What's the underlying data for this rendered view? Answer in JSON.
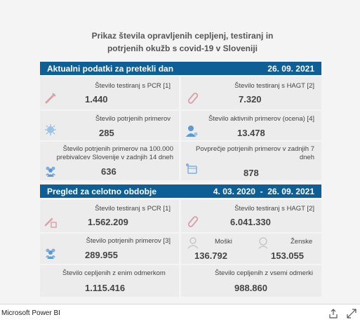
{
  "report": {
    "title_line1": "Prikaz števila opravljenih cepljenj, testiranj in",
    "title_line2": "potrjenih okužb s covid-19 v Sloveniji"
  },
  "current": {
    "header_label": "Aktualni podatki za pretekli dan",
    "header_date": "26. 09. 2021",
    "pcr_label": "Število testiranj s PCR [1]",
    "pcr_value": "1.440",
    "hagt_label": "Število testiranj s HAGT [2]",
    "hagt_value": "7.320",
    "confirmed_label": "Število potrjenih primerov",
    "confirmed_value": "285",
    "active_label": "Število aktivnih primerov (ocena) [4]",
    "active_value": "13.478",
    "per100k_label_line1": "Število potrjenih primerov na 100.000",
    "per100k_label_line2": "prebivalcev Slovenije v zadnjih 14 dneh",
    "per100k_value": "636",
    "avg7_label_line1": "Povprečje potrjenih primerov v zadnjih 7",
    "avg7_label_line2": "dneh",
    "avg7_value": "878"
  },
  "overall": {
    "header_label": "Pregled za celotno obdobje",
    "header_date": "4. 03. 2020  -  26. 09. 2021",
    "pcr_label": "Število testiranj s PCR [1]",
    "pcr_value": "1.562.209",
    "hagt_label": "Število testiranj s HAGT [2]",
    "hagt_value": "6.041.330",
    "confirmed_label": "Število potrjenih primerov [3]",
    "confirmed_value": "289.955",
    "male_label": "Moški",
    "male_value": "136.792",
    "female_label": "Ženske",
    "female_value": "153.055",
    "vacc1_label": "Število cepljenih z enim odmerkom",
    "vacc1_value": "1.115.416",
    "vaccall_label": "Število cepljenih z vsemi odmerki",
    "vaccall_value": "988.860"
  },
  "footer": {
    "brand": "Microsoft Power BI"
  },
  "colors": {
    "header_bg": "#0f5f97",
    "icon_pink": "#d9a3ac",
    "icon_blue": "#7fb0dc"
  }
}
